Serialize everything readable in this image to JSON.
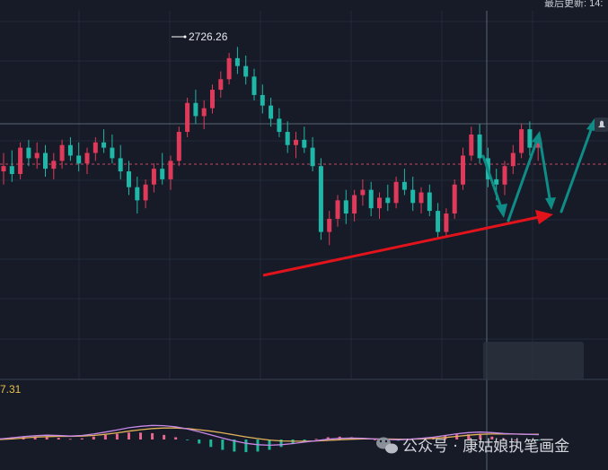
{
  "header": {
    "last_update_text": "最后更新: 14:"
  },
  "price_annotation": "2726.26",
  "macd_label": "7.31",
  "watermark": {
    "text": "公众号 · 康姑娘执笔画金"
  },
  "colors": {
    "background": "#161b27",
    "grid": "#222a38",
    "up": "#e03a5a",
    "down": "#1fb7a8",
    "trend_arrow": "#e3131c",
    "projection_arrow": "#0f8c86",
    "dif_line": "#c888e8",
    "dea_line": "#e2b35a",
    "hist_pos": "#e8678c",
    "hist_neg": "#1fb79a",
    "macd_label_color": "#e8c14a"
  },
  "chart_data": {
    "type": "candlestick",
    "price_high_label": 2726.26,
    "candles_ohlc": [
      [
        2679,
        2686,
        2674,
        2681
      ],
      [
        2681,
        2687,
        2675,
        2678
      ],
      [
        2678,
        2690,
        2676,
        2688
      ],
      [
        2688,
        2691,
        2681,
        2684
      ],
      [
        2684,
        2690,
        2680,
        2686
      ],
      [
        2686,
        2689,
        2677,
        2680
      ],
      [
        2680,
        2686,
        2676,
        2683
      ],
      [
        2683,
        2691,
        2680,
        2689
      ],
      [
        2689,
        2692,
        2683,
        2685
      ],
      [
        2685,
        2690,
        2679,
        2682
      ],
      [
        2682,
        2688,
        2678,
        2686
      ],
      [
        2686,
        2692,
        2683,
        2690
      ],
      [
        2690,
        2695,
        2686,
        2688
      ],
      [
        2688,
        2693,
        2682,
        2684
      ],
      [
        2684,
        2689,
        2676,
        2679
      ],
      [
        2679,
        2683,
        2670,
        2673
      ],
      [
        2673,
        2677,
        2663,
        2668
      ],
      [
        2668,
        2676,
        2665,
        2674
      ],
      [
        2674,
        2682,
        2671,
        2680
      ],
      [
        2680,
        2686,
        2674,
        2676
      ],
      [
        2676,
        2685,
        2672,
        2683
      ],
      [
        2683,
        2696,
        2681,
        2694
      ],
      [
        2694,
        2707,
        2692,
        2705
      ],
      [
        2705,
        2710,
        2697,
        2700
      ],
      [
        2700,
        2706,
        2695,
        2703
      ],
      [
        2703,
        2712,
        2701,
        2710
      ],
      [
        2710,
        2717,
        2707,
        2714
      ],
      [
        2714,
        2724,
        2712,
        2722
      ],
      [
        2722,
        2726.26,
        2716,
        2719
      ],
      [
        2719,
        2723,
        2712,
        2715
      ],
      [
        2715,
        2718,
        2706,
        2708
      ],
      [
        2708,
        2712,
        2701,
        2704
      ],
      [
        2704,
        2707,
        2696,
        2699
      ],
      [
        2699,
        2703,
        2692,
        2694
      ],
      [
        2694,
        2698,
        2686,
        2689
      ],
      [
        2689,
        2694,
        2684,
        2691
      ],
      [
        2691,
        2696,
        2686,
        2688
      ],
      [
        2688,
        2692,
        2679,
        2681
      ],
      [
        2681,
        2684,
        2653,
        2656
      ],
      [
        2656,
        2664,
        2651,
        2661
      ],
      [
        2661,
        2670,
        2658,
        2668
      ],
      [
        2668,
        2672,
        2659,
        2663
      ],
      [
        2663,
        2672,
        2660,
        2670
      ],
      [
        2670,
        2676,
        2666,
        2672
      ],
      [
        2672,
        2675,
        2662,
        2665
      ],
      [
        2665,
        2671,
        2661,
        2669
      ],
      [
        2669,
        2674,
        2664,
        2667
      ],
      [
        2667,
        2677,
        2665,
        2675
      ],
      [
        2675,
        2680,
        2670,
        2672
      ],
      [
        2672,
        2677,
        2664,
        2667
      ],
      [
        2667,
        2673,
        2663,
        2671
      ],
      [
        2671,
        2674,
        2662,
        2664
      ],
      [
        2664,
        2667,
        2654,
        2656
      ],
      [
        2656,
        2665,
        2654,
        2663
      ],
      [
        2663,
        2676,
        2661,
        2674
      ],
      [
        2674,
        2688,
        2672,
        2685
      ],
      [
        2685,
        2696,
        2683,
        2693
      ],
      [
        2693,
        2697,
        2682,
        2684
      ],
      [
        2684,
        2688,
        2673,
        2676
      ],
      [
        2676,
        2680,
        2668,
        2674
      ],
      [
        2674,
        2683,
        2670,
        2681
      ],
      [
        2681,
        2689,
        2678,
        2686
      ],
      [
        2686,
        2697,
        2684,
        2695
      ],
      [
        2695,
        2698,
        2685,
        2688
      ],
      [
        2688,
        2693,
        2683,
        2690
      ]
    ],
    "indicator": "MACD",
    "indicator_value_label": "7.31",
    "macd_dif": [
      0.2,
      0.6,
      1.0,
      1.3,
      1.5,
      1.4,
      1.2,
      1.4,
      1.9,
      2.6,
      3.3,
      4.1,
      4.6,
      4.9,
      4.8,
      4.4,
      3.7,
      2.7,
      1.6,
      0.5,
      -0.5,
      -1.3,
      -1.8,
      -2.0,
      -1.8,
      -1.4,
      -0.9,
      -0.4,
      0.1,
      0.4,
      0.5,
      0.4,
      0.2,
      0.0,
      -0.1,
      0.1,
      0.4,
      0.8,
      1.4,
      2.0,
      2.4,
      2.6,
      2.4,
      2.1,
      1.9,
      1.8,
      1.7
    ],
    "macd_dea": [
      0.0,
      0.2,
      0.5,
      0.8,
      1.0,
      1.1,
      1.1,
      1.2,
      1.4,
      1.8,
      2.3,
      2.9,
      3.4,
      3.8,
      4.0,
      4.0,
      3.8,
      3.4,
      2.9,
      2.3,
      1.6,
      0.9,
      0.3,
      -0.2,
      -0.5,
      -0.6,
      -0.6,
      -0.5,
      -0.3,
      -0.1,
      0.1,
      0.2,
      0.2,
      0.2,
      0.1,
      0.1,
      0.2,
      0.4,
      0.7,
      1.1,
      1.5,
      1.8,
      1.9,
      1.9,
      1.9,
      1.8,
      1.8
    ],
    "trend_arrow_from": {
      "candle_index": 38,
      "price": 2654
    },
    "trend_arrow_to": {
      "candle_index": 64,
      "price": 2676
    },
    "grid": true
  }
}
